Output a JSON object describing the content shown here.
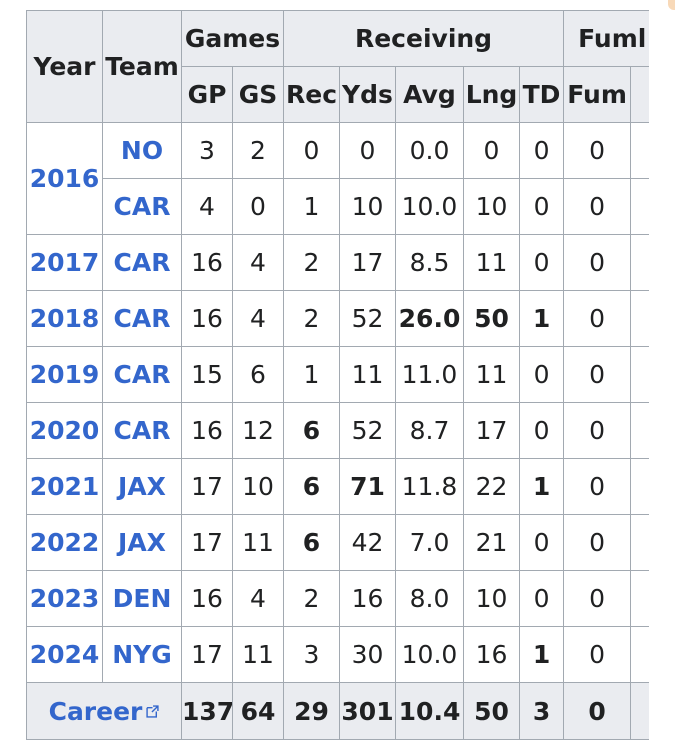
{
  "table": {
    "group_headers": {
      "year": "Year",
      "team": "Team",
      "games": "Games",
      "receiving": "Receiving",
      "fumbles": "Fuml"
    },
    "sub_headers": {
      "gp": "GP",
      "gs": "GS",
      "rec": "Rec",
      "yds": "Yds",
      "avg": "Avg",
      "lng": "Lng",
      "td": "TD",
      "fum": "Fum"
    },
    "rows": [
      {
        "year": "2016",
        "team": "NO",
        "gp": "3",
        "gs": "2",
        "rec": "0",
        "yds": "0",
        "avg": "0.0",
        "lng": "0",
        "td": "0",
        "fum": "0"
      },
      {
        "year": "",
        "team": "CAR",
        "gp": "4",
        "gs": "0",
        "rec": "1",
        "yds": "10",
        "avg": "10.0",
        "lng": "10",
        "td": "0",
        "fum": "0"
      },
      {
        "year": "2017",
        "team": "CAR",
        "gp": "16",
        "gs": "4",
        "rec": "2",
        "yds": "17",
        "avg": "8.5",
        "lng": "11",
        "td": "0",
        "fum": "0"
      },
      {
        "year": "2018",
        "team": "CAR",
        "gp": "16",
        "gs": "4",
        "rec": "2",
        "yds": "52",
        "avg": "26.0",
        "lng": "50",
        "td": "1",
        "fum": "0"
      },
      {
        "year": "2019",
        "team": "CAR",
        "gp": "15",
        "gs": "6",
        "rec": "1",
        "yds": "11",
        "avg": "11.0",
        "lng": "11",
        "td": "0",
        "fum": "0"
      },
      {
        "year": "2020",
        "team": "CAR",
        "gp": "16",
        "gs": "12",
        "rec": "6",
        "yds": "52",
        "avg": "8.7",
        "lng": "17",
        "td": "0",
        "fum": "0"
      },
      {
        "year": "2021",
        "team": "JAX",
        "gp": "17",
        "gs": "10",
        "rec": "6",
        "yds": "71",
        "avg": "11.8",
        "lng": "22",
        "td": "1",
        "fum": "0"
      },
      {
        "year": "2022",
        "team": "JAX",
        "gp": "17",
        "gs": "11",
        "rec": "6",
        "yds": "42",
        "avg": "7.0",
        "lng": "21",
        "td": "0",
        "fum": "0"
      },
      {
        "year": "2023",
        "team": "DEN",
        "gp": "16",
        "gs": "4",
        "rec": "2",
        "yds": "16",
        "avg": "8.0",
        "lng": "10",
        "td": "0",
        "fum": "0"
      },
      {
        "year": "2024",
        "team": "NYG",
        "gp": "17",
        "gs": "11",
        "rec": "3",
        "yds": "30",
        "avg": "10.0",
        "lng": "16",
        "td": "1",
        "fum": "0"
      }
    ],
    "career": {
      "label": "Career",
      "gp": "137",
      "gs": "64",
      "rec": "29",
      "yds": "301",
      "avg": "10.4",
      "lng": "50",
      "td": "3",
      "fum": "0"
    }
  },
  "colors": {
    "header_bg": "#eaecf0",
    "border": "#a2a9b1",
    "link": "#3366cc",
    "text": "#202122"
  }
}
